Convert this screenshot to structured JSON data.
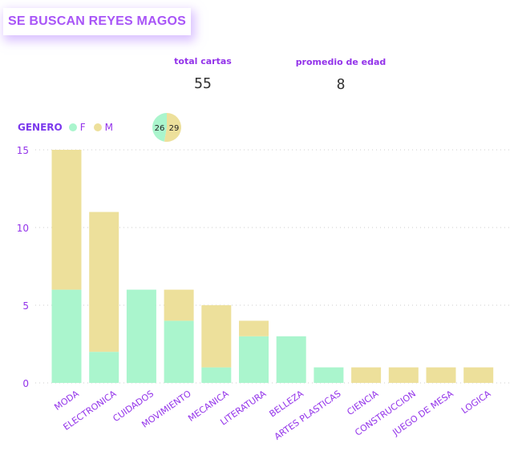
{
  "title": "SE BUSCAN REYES MAGOS",
  "kpis": [
    {
      "label": "total cartas",
      "value": "55"
    },
    {
      "label": "promedio de edad",
      "value": "8"
    }
  ],
  "colors": {
    "F": "#aaf5cd",
    "M": "#ede09b",
    "accent": "#9333ea",
    "grid": "#cccccc"
  },
  "legend": {
    "title": "GENERO",
    "items": [
      "F",
      "M"
    ]
  },
  "pie": {
    "values": [
      26,
      29
    ],
    "labels": [
      "26",
      "29"
    ]
  },
  "chart_data": {
    "type": "bar",
    "stacked": true,
    "categories": [
      "MODA",
      "ELECTRONICA",
      "CUIDADOS",
      "MOVIMIENTO",
      "MECANICA",
      "LITERATURA",
      "BELLEZA",
      "ARTES PLASTICAS",
      "CIENCIA",
      "CONSTRUCCION",
      "JUEGO DE MESA",
      "LOGICA"
    ],
    "series": [
      {
        "name": "F",
        "values": [
          6,
          2,
          6,
          4,
          1,
          3,
          3,
          1,
          0,
          0,
          0,
          0
        ]
      },
      {
        "name": "M",
        "values": [
          9,
          9,
          0,
          2,
          4,
          1,
          0,
          0,
          1,
          1,
          1,
          1
        ]
      }
    ],
    "ylim": [
      0,
      15
    ],
    "yticks": [
      0,
      5,
      10,
      15
    ],
    "grid": true,
    "legend_position": "top-left"
  }
}
